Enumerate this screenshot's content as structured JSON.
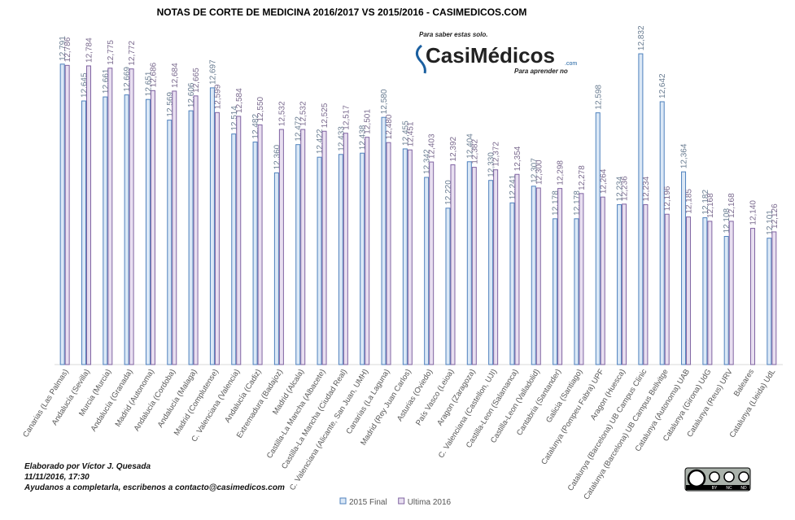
{
  "chart_data": {
    "type": "bar",
    "title": "NOTAS DE CORTE DE MEDICINA 2016/2017  VS 2015/2016  - CASIMEDICOS.COM",
    "categories": [
      "Canarias (Las Palmas)",
      "Andalucía (Sevilla)",
      "Murcia (Murcia)",
      "Andalucía (Granada)",
      "Madrid (Autonoma)",
      "Andalucía (Cordoba)",
      "Andalucía (Malaga)",
      "Madrid (Complutense)",
      "C. Valenciana (Valencia)",
      "Andalucía (Cadiz)",
      "Extremadura (Badajoz)",
      "Madrid (Alcala)",
      "Castilla-La Mancha (Albacete)",
      "Castilla-La Mancha (Ciudad Real)",
      "C. Valenciana (Alicante, San Juan, UMH)",
      "Canarias (La Laguna)",
      "Madrid (Rey Juan Carlos)",
      "Asturias (Oviedo)",
      "País Vasco (Leioa)",
      "Aragon (Zaragoza)",
      "C. Valenciana (Castellon, UJI)",
      "Castilla-Leon (Salamanca)",
      "Castilla-Leon (Valladolid)",
      "Cantabria (Santander)",
      "Galicia (Santiago)",
      "Catalunya (Pompeu Fabra) UPF",
      "Aragon (Huesca)",
      "Catalunya (Barcelona) UB Campus Clinic",
      "Catalunya (Barcelona) UB Campus Bellvitge",
      "Catalunya (Autonoma) UAB",
      "Catalunya (Girona) UdG",
      "Catalunya (Reus) URV",
      "Baleares",
      "Catalunya (Lleida) UdL"
    ],
    "series": [
      {
        "name": "2015 Final",
        "color": "#4f81bd",
        "fill": "#dbe8f6",
        "values": [
          12.791,
          12.645,
          12.661,
          12.669,
          12.651,
          12.569,
          12.606,
          12.697,
          12.514,
          12.482,
          12.36,
          12.472,
          12.422,
          12.433,
          12.438,
          12.58,
          12.455,
          12.342,
          12.22,
          12.404,
          12.33,
          12.241,
          12.307,
          12.178,
          12.178,
          12.598,
          12.234,
          12.832,
          12.642,
          12.364,
          12.182,
          12.108,
          null,
          12.101
        ],
        "value_labels": [
          "12,791",
          "12,645",
          "12,661",
          "12,669",
          "12,651",
          "12,569",
          "12,606",
          "12,697",
          "12,514",
          "12,482",
          "12,360",
          "12,472",
          "12,422",
          "12,433",
          "12,438",
          "12,580",
          "12,455",
          "12,342",
          "12,220",
          "12,404",
          "12,330",
          "12,241",
          "12,307",
          "12,178",
          "12,178",
          "12,598",
          "12,234",
          "12,832",
          "12,642",
          "12,364",
          "12,182",
          "12,108",
          null,
          "12,101"
        ]
      },
      {
        "name": "Ultima 2016",
        "color": "#8064a2",
        "fill": "#e8dff0",
        "values": [
          12.786,
          12.784,
          12.775,
          12.772,
          12.686,
          12.684,
          12.665,
          12.599,
          12.584,
          12.55,
          12.532,
          12.532,
          12.525,
          12.517,
          12.501,
          12.48,
          12.451,
          12.403,
          12.392,
          12.382,
          12.372,
          12.354,
          12.3,
          12.298,
          12.278,
          12.264,
          12.236,
          12.234,
          12.196,
          12.185,
          12.168,
          12.168,
          12.14,
          12.126
        ],
        "value_labels": [
          "12,786",
          "12,784",
          "12,775",
          "12,772",
          "12,686",
          "12,684",
          "12,665",
          "12,599",
          "12,584",
          "12,550",
          "12,532",
          "12,532",
          "12,525",
          "12,517",
          "12,501",
          "12,480",
          "12,451",
          "12,403",
          "12,392",
          "12,382",
          "12,372",
          "12,354",
          "12,300",
          "12,298",
          "12,278",
          "12,264",
          "12,236",
          "12,234",
          "12,196",
          "12,185",
          "12,168",
          "12,168",
          "12,140",
          "12,126"
        ]
      }
    ],
    "ylim": [
      11.6,
      12.9
    ],
    "legend": "bottom",
    "logo": {
      "top": "Para saber estas solo.",
      "name": "CasiMédicos",
      "suffix": ".com",
      "bottom": "Para aprender no"
    },
    "footer": [
      "Elaborado por Víctor J. Quesada",
      "11/11/2016, 17:30",
      " Ayudanos a completarla, escribenos a contacto@casimedicos.com"
    ],
    "license": [
      "BY",
      "NC",
      "ND"
    ]
  }
}
